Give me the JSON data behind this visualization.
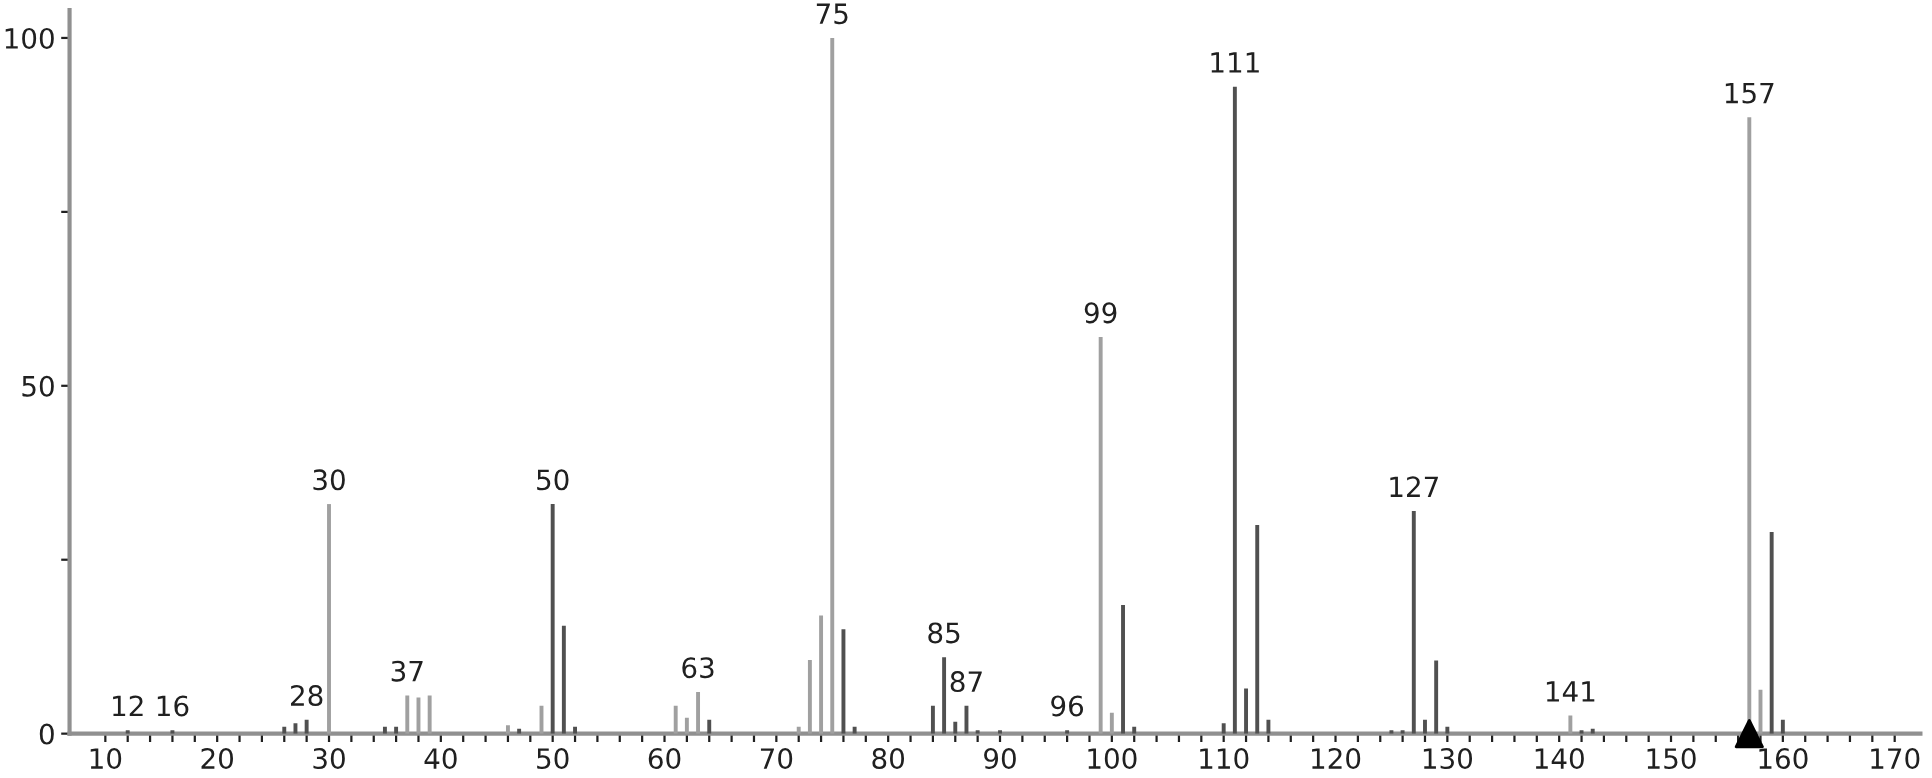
{
  "chart_data": {
    "type": "bar",
    "x": [
      12,
      16,
      26,
      27,
      28,
      30,
      35,
      36,
      37,
      38,
      39,
      46,
      47,
      49,
      50,
      51,
      52,
      61,
      62,
      63,
      64,
      72,
      73,
      74,
      75,
      76,
      77,
      84,
      85,
      86,
      87,
      88,
      90,
      96,
      99,
      100,
      101,
      102,
      110,
      111,
      112,
      113,
      114,
      125,
      126,
      127,
      128,
      129,
      130,
      141,
      142,
      143,
      157,
      158,
      159,
      160
    ],
    "series": [
      {
        "values": [
          0.5,
          0.5,
          1,
          1.5,
          2,
          33,
          1,
          1,
          5.5,
          5.2,
          5.5,
          1.2,
          0.7,
          4,
          33,
          15.5,
          1,
          4,
          2.3,
          6,
          2,
          1,
          10.6,
          17,
          100,
          15,
          1,
          4,
          11,
          1.7,
          4,
          0.5,
          0.5,
          0.5,
          57,
          3,
          18.5,
          1,
          1.5,
          93,
          6.5,
          30,
          2,
          0.5,
          0.5,
          32,
          2,
          10.5,
          1,
          2.6,
          0.5,
          0.7,
          88.6,
          6.3,
          29,
          2
        ],
        "colors": [
          "#505050",
          "#505050",
          "#505050",
          "#505050",
          "#505050",
          "#a0a0a0",
          "#505050",
          "#505050",
          "#a0a0a0",
          "#a0a0a0",
          "#a0a0a0",
          "#a0a0a0",
          "#505050",
          "#a0a0a0",
          "#505050",
          "#505050",
          "#505050",
          "#a0a0a0",
          "#a0a0a0",
          "#a0a0a0",
          "#505050",
          "#a0a0a0",
          "#a0a0a0",
          "#a0a0a0",
          "#a0a0a0",
          "#505050",
          "#505050",
          "#505050",
          "#505050",
          "#505050",
          "#505050",
          "#505050",
          "#505050",
          "#505050",
          "#a0a0a0",
          "#a0a0a0",
          "#505050",
          "#505050",
          "#505050",
          "#505050",
          "#505050",
          "#505050",
          "#505050",
          "#505050",
          "#505050",
          "#505050",
          "#505050",
          "#505050",
          "#505050",
          "#a0a0a0",
          "#505050",
          "#505050",
          "#a0a0a0",
          "#a0a0a0",
          "#505050",
          "#505050"
        ]
      },
      {
        "type": "scatter",
        "marker": "triangle",
        "color": "#000000",
        "x": [
          157
        ],
        "values": [
          0
        ]
      }
    ],
    "annotations": [
      {
        "text": "12",
        "x": 12,
        "y": 0.5
      },
      {
        "text": "16",
        "x": 16,
        "y": 0.5
      },
      {
        "text": "28",
        "x": 28,
        "y": 2
      },
      {
        "text": "30",
        "x": 30,
        "y": 33
      },
      {
        "text": "37",
        "x": 37,
        "y": 5.5
      },
      {
        "text": "50",
        "x": 50,
        "y": 33
      },
      {
        "text": "63",
        "x": 63,
        "y": 6
      },
      {
        "text": "75",
        "x": 75,
        "y": 100
      },
      {
        "text": "85",
        "x": 85,
        "y": 11
      },
      {
        "text": "87",
        "x": 87,
        "y": 4
      },
      {
        "text": "96",
        "x": 96,
        "y": 0.5
      },
      {
        "text": "99",
        "x": 99,
        "y": 57
      },
      {
        "text": "111",
        "x": 111,
        "y": 93
      },
      {
        "text": "127",
        "x": 127,
        "y": 32
      },
      {
        "text": "141",
        "x": 141,
        "y": 2.6
      },
      {
        "text": "157",
        "x": 157,
        "y": 88.6
      }
    ],
    "xlim": [
      6.8,
      172.3
    ],
    "ylim": [
      0,
      104
    ],
    "xticks": [
      10,
      {
        "value": 12,
        "label": null
      },
      {
        "value": 14,
        "label": null
      },
      {
        "value": 16,
        "label": null
      },
      {
        "value": 18,
        "label": null
      },
      20,
      {
        "value": 22,
        "label": null
      },
      {
        "value": 24,
        "label": null
      },
      {
        "value": 26,
        "label": null
      },
      {
        "value": 28,
        "label": null
      },
      30,
      {
        "value": 32,
        "label": null
      },
      {
        "value": 34,
        "label": null
      },
      {
        "value": 36,
        "label": null
      },
      {
        "value": 38,
        "label": null
      },
      40,
      {
        "value": 42,
        "label": null
      },
      {
        "value": 44,
        "label": null
      },
      {
        "value": 46,
        "label": null
      },
      {
        "value": 48,
        "label": null
      },
      50,
      {
        "value": 52,
        "label": null
      },
      {
        "value": 54,
        "label": null
      },
      {
        "value": 56,
        "label": null
      },
      {
        "value": 58,
        "label": null
      },
      60,
      {
        "value": 62,
        "label": null
      },
      {
        "value": 64,
        "label": null
      },
      {
        "value": 66,
        "label": null
      },
      {
        "value": 68,
        "label": null
      },
      70,
      {
        "value": 72,
        "label": null
      },
      {
        "value": 74,
        "label": null
      },
      {
        "value": 76,
        "label": null
      },
      {
        "value": 78,
        "label": null
      },
      80,
      {
        "value": 82,
        "label": null
      },
      {
        "value": 84,
        "label": null
      },
      {
        "value": 86,
        "label": null
      },
      {
        "value": 88,
        "label": null
      },
      90,
      {
        "value": 92,
        "label": null
      },
      {
        "value": 94,
        "label": null
      },
      {
        "value": 96,
        "label": null
      },
      {
        "value": 98,
        "label": null
      },
      100,
      {
        "value": 102,
        "label": null
      },
      {
        "value": 104,
        "label": null
      },
      {
        "value": 106,
        "label": null
      },
      {
        "value": 108,
        "label": null
      },
      110,
      {
        "value": 112,
        "label": null
      },
      {
        "value": 114,
        "label": null
      },
      {
        "value": 116,
        "label": null
      },
      {
        "value": 118,
        "label": null
      },
      120,
      {
        "value": 122,
        "label": null
      },
      {
        "value": 124,
        "label": null
      },
      {
        "value": 126,
        "label": null
      },
      {
        "value": 128,
        "label": null
      },
      130,
      {
        "value": 132,
        "label": null
      },
      {
        "value": 134,
        "label": null
      },
      {
        "value": 136,
        "label": null
      },
      {
        "value": 138,
        "label": null
      },
      140,
      {
        "value": 142,
        "label": null
      },
      {
        "value": 144,
        "label": null
      },
      {
        "value": 146,
        "label": null
      },
      {
        "value": 148,
        "label": null
      },
      150,
      {
        "value": 152,
        "label": null
      },
      {
        "value": 154,
        "label": null
      },
      {
        "value": 156,
        "label": null
      },
      {
        "value": 158,
        "label": null
      },
      160,
      {
        "value": 162,
        "label": null
      },
      {
        "value": 164,
        "label": null
      },
      {
        "value": 166,
        "label": null
      },
      {
        "value": 168,
        "label": null
      },
      170
    ],
    "yticks": [
      0,
      {
        "value": 25,
        "label": null
      },
      50,
      {
        "value": 75,
        "label": null
      },
      100
    ],
    "grid": false,
    "legend": false
  }
}
